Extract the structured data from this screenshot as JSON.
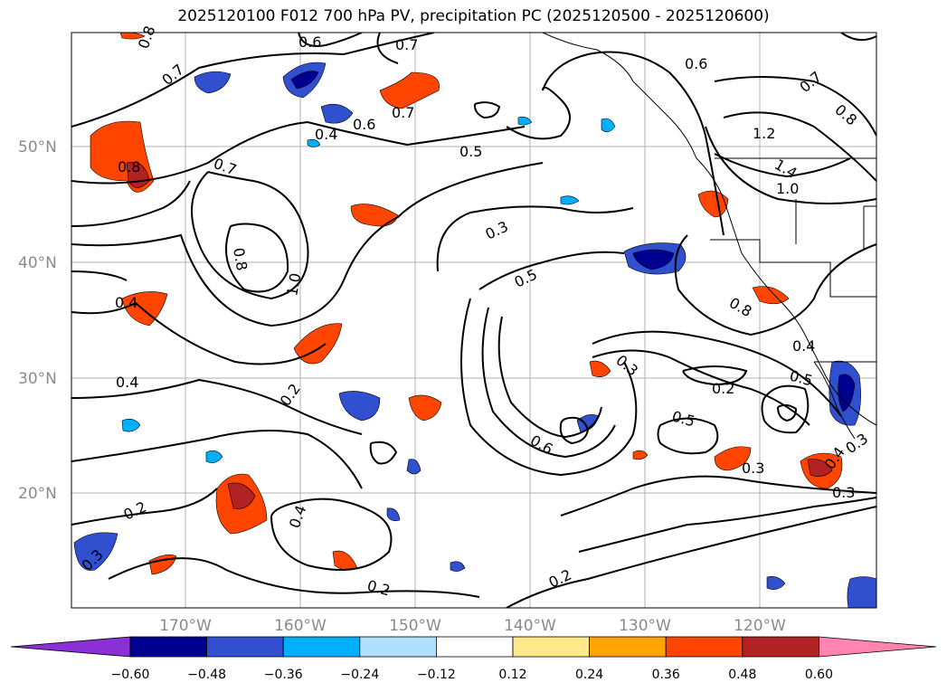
{
  "title": "2025120100 F012 700 hPa PV, precipitation PC (2025120500 - 2025120600)",
  "map": {
    "lat_labels": [
      "50°N",
      "40°N",
      "30°N",
      "20°N"
    ],
    "lon_labels": [
      "170°W",
      "160°W",
      "150°W",
      "140°W",
      "130°W",
      "120°W"
    ]
  },
  "contour_labels": [
    "0.8",
    "0.6",
    "0.7",
    "0.7",
    "0.6",
    "0.7",
    "0.6",
    "0.4",
    "0.5",
    "0.7",
    "1.2",
    "1.4",
    "1.0",
    "0.8",
    "0.8",
    "0.7",
    "0.8",
    "0.3",
    "0.5",
    "1.0",
    "0.4",
    "0.8",
    "0.4",
    "0.4",
    "0.2",
    "0.3",
    "0.2",
    "0.5",
    "0.5",
    "0.6",
    "0.3",
    "0.2",
    "0.4",
    "0.4",
    "0.3",
    "0.3",
    "0.2",
    "0.2",
    "0.3"
  ],
  "colorbar": {
    "tick_labels": [
      "−0.60",
      "−0.48",
      "−0.36",
      "−0.24",
      "−0.12",
      "0.12",
      "0.24",
      "0.36",
      "0.48",
      "0.60"
    ],
    "colors": [
      "#8b2fd6",
      "#000090",
      "#3050d0",
      "#00b0ff",
      "#aee0ff",
      "#ffffff",
      "#ffe98a",
      "#ffa500",
      "#ff4500",
      "#b22222",
      "#ff85b0"
    ]
  }
}
